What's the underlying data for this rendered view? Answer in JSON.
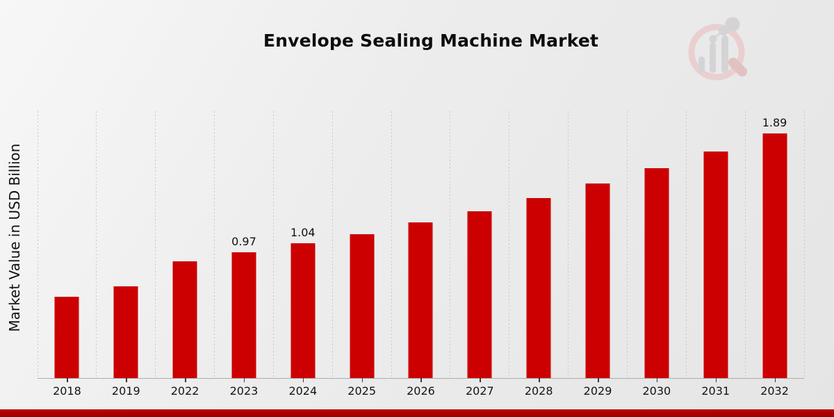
{
  "header": {
    "title": "Envelope Sealing Machine Market"
  },
  "chart_data": {
    "type": "bar",
    "title": "Envelope Sealing Machine Market",
    "xlabel": "",
    "ylabel": "Market Value in USD Billion",
    "categories": [
      "2018",
      "2019",
      "2022",
      "2023",
      "2024",
      "2025",
      "2026",
      "2027",
      "2028",
      "2029",
      "2030",
      "2031",
      "2032"
    ],
    "values": [
      0.63,
      0.71,
      0.9,
      0.97,
      1.04,
      1.11,
      1.2,
      1.29,
      1.39,
      1.5,
      1.62,
      1.75,
      1.89
    ],
    "data_labels": {
      "2023": "0.97",
      "2024": "1.04",
      "2032": "1.89"
    },
    "ylim": [
      0,
      2.06
    ],
    "grid": "vertical-dotted",
    "legend": "none",
    "bar_color": "#cc0000",
    "gridline_color": "#c7c7c7",
    "accent_strip_color": "#ab0000",
    "watermark": "magnifier-bar-chart-logo"
  }
}
